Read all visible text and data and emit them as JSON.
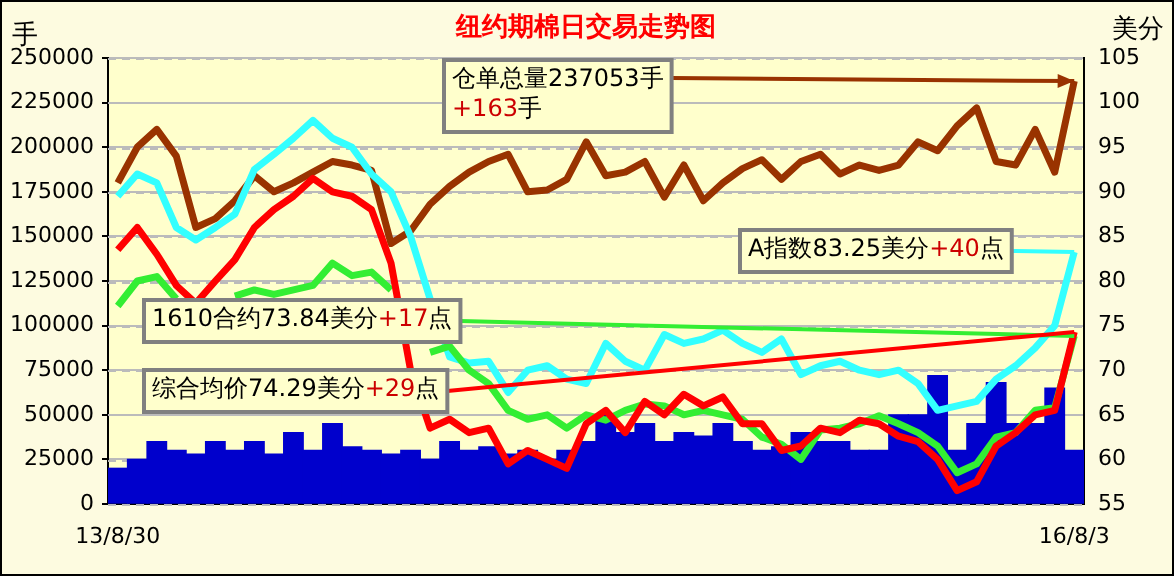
{
  "chart_data": {
    "type": "line",
    "title": "纽约期棉日交易走势图",
    "ylabel": "手",
    "y2label": "美分",
    "categories": [
      "13/8/30",
      null,
      null,
      null,
      null,
      null,
      null,
      null,
      null,
      null,
      null,
      null,
      null,
      null,
      null,
      null,
      null,
      null,
      null,
      null,
      null,
      null,
      null,
      null,
      null,
      null,
      null,
      null,
      null,
      null,
      null,
      null,
      null,
      null,
      null,
      null,
      null,
      null,
      null,
      null,
      null,
      null,
      null,
      null,
      null,
      null,
      null,
      null,
      null,
      "16/8/3"
    ],
    "series": [
      {
        "type": "bar",
        "axis": "y",
        "color": "#0000cc",
        "values": [
          20000,
          25000,
          35000,
          30000,
          28000,
          35000,
          30000,
          35000,
          28000,
          40000,
          30000,
          45000,
          32000,
          30000,
          28000,
          30000,
          25000,
          35000,
          30000,
          32000,
          28000,
          30000,
          25000,
          30000,
          35000,
          50000,
          40000,
          45000,
          35000,
          40000,
          38000,
          45000,
          35000,
          30000,
          32000,
          40000,
          35000,
          35000,
          30000,
          30000,
          50000,
          50000,
          72000,
          30000,
          45000,
          68000,
          45000,
          45000,
          65000,
          30000
        ]
      },
      {
        "axis": "y",
        "color": "#993300",
        "values": [
          180000,
          200000,
          210000,
          195000,
          155000,
          160000,
          170000,
          184000,
          175000,
          180000,
          186000,
          192000,
          190000,
          187000,
          146000,
          153000,
          168000,
          178000,
          186000,
          192000,
          196000,
          175000,
          176000,
          182000,
          203000,
          184000,
          186000,
          192000,
          172000,
          190000,
          170000,
          180000,
          188000,
          193000,
          182000,
          192000,
          196000,
          185000,
          190000,
          187000,
          190000,
          203000,
          198000,
          212000,
          222000,
          192000,
          190000,
          210000,
          186000,
          237053
        ]
      },
      {
        "axis": "y2",
        "color": "#33ffff",
        "values": [
          89.5,
          92,
          91,
          86,
          84.6,
          86,
          87.5,
          92.5,
          94.2,
          96,
          98,
          96,
          95,
          92,
          90,
          85,
          78,
          71.5,
          70.8,
          71,
          67.5,
          70,
          70.5,
          69,
          68.5,
          73,
          71,
          70,
          74,
          73,
          73.5,
          74.5,
          73,
          72,
          73.5,
          69.5,
          70.5,
          71,
          70,
          69.5,
          70,
          68.5,
          65.5,
          66,
          66.5,
          69,
          70.5,
          72.5,
          75,
          83.25
        ]
      },
      {
        "axis": "y2",
        "color": "#33ee33",
        "values": [
          77.2,
          80,
          80.5,
          78,
          null,
          null,
          78.3,
          79,
          78.5,
          79,
          79.5,
          82,
          80.6,
          81,
          79,
          null,
          72,
          72.7,
          70,
          68.5,
          65.5,
          64.5,
          65,
          63.5,
          65,
          64.4,
          65.5,
          66.2,
          66,
          65,
          65.5,
          65,
          64.5,
          62.5,
          61.7,
          60,
          63.3,
          63.5,
          64,
          64.9,
          64,
          63,
          61.5,
          58.5,
          59.5,
          62.5,
          63,
          65.5,
          65.8,
          73.84
        ]
      },
      {
        "axis": "y2",
        "color": "#ff0000",
        "values": [
          83.5,
          86,
          83,
          79.5,
          77.5,
          80,
          82.4,
          86,
          88,
          89.5,
          91.5,
          90,
          89.5,
          88,
          82,
          70,
          63.5,
          64.5,
          63,
          63.5,
          59.5,
          61,
          60,
          59,
          64,
          65.5,
          63,
          66.5,
          65,
          67.3,
          66,
          67,
          64,
          64,
          61,
          61.5,
          63.5,
          63,
          64.4,
          64,
          62.6,
          62,
          60,
          56.5,
          57.5,
          61.5,
          63,
          65,
          65.5,
          74.29
        ]
      }
    ],
    "ylim": [
      0,
      250000
    ],
    "yticks": [
      0,
      25000,
      50000,
      75000,
      100000,
      125000,
      150000,
      175000,
      200000,
      225000,
      250000
    ],
    "y2lim": [
      55,
      105
    ],
    "y2ticks": [
      55,
      60,
      65,
      70,
      75,
      80,
      85,
      90,
      95,
      100,
      105
    ],
    "grid": "y",
    "legend": false,
    "marker": "none",
    "line_style": "solid",
    "annotations": [
      "仓单总量237053手\n+163手",
      "A指数83.25美分+40点",
      "1610合约73.84美分+17点",
      "综合均价74.29美分+29点"
    ]
  }
}
